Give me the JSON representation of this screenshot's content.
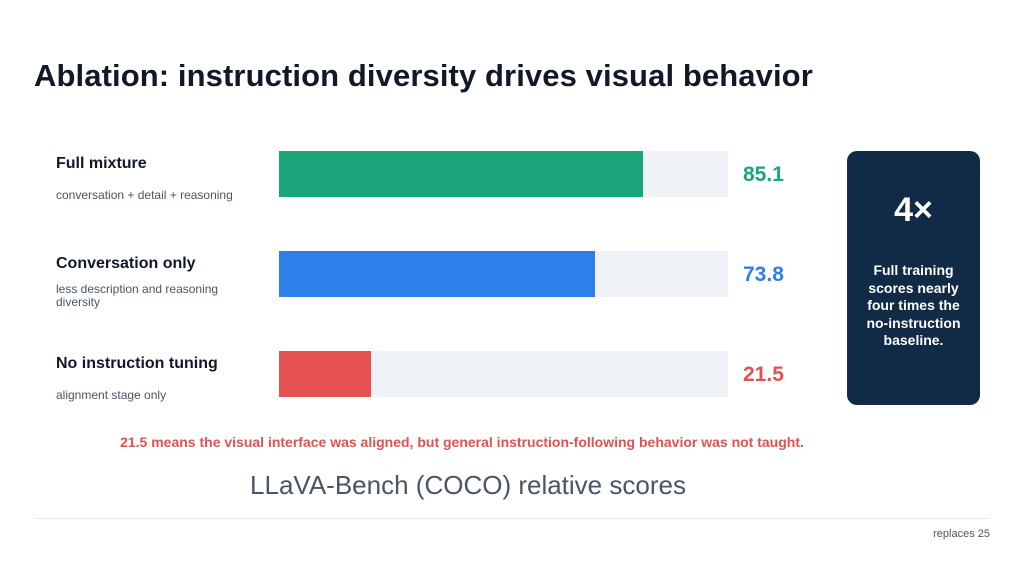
{
  "title": "Ablation: instruction diversity drives visual behavior",
  "chart_data": {
    "type": "bar",
    "orientation": "horizontal",
    "categories": [
      "Full mixture",
      "Conversation only",
      "No instruction tuning"
    ],
    "subtitles": [
      "conversation + detail + reasoning",
      "less description and reasoning diversity",
      "alignment stage only"
    ],
    "values": [
      85.1,
      73.8,
      21.5
    ],
    "value_labels": [
      "85.1",
      "73.8",
      "21.5"
    ],
    "colors": [
      "#1aa67a",
      "#2f7fea",
      "#e55151"
    ],
    "xlim": [
      0,
      105
    ],
    "grid": false,
    "caption": "LLaVA-Bench (COCO) relative scores"
  },
  "callout": {
    "big": "4×",
    "text": "Full training scores nearly four times the no-instruction baseline."
  },
  "note": "21.5 means the visual interface was aligned, but general instruction-following behavior was not taught.",
  "footer": "replaces 25"
}
